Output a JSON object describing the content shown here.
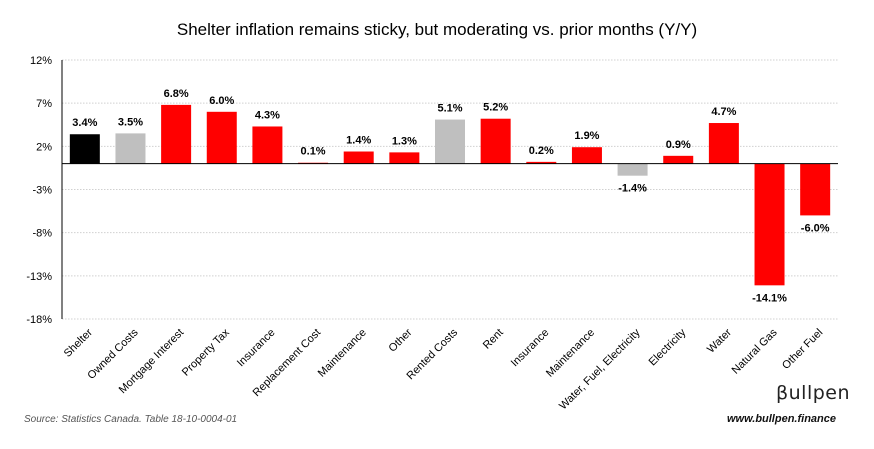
{
  "chart_data": {
    "type": "bar",
    "title": "Shelter inflation remains sticky, but moderating vs. prior months (Y/Y)",
    "categories": [
      "Shelter",
      "Owned Costs",
      "Mortgage Interest",
      "Property Tax",
      "Insurance",
      "Replacement Cost",
      "Maintenance",
      "Other",
      "Rented Costs",
      "Rent",
      "Insurance",
      "Maintenance",
      "Water, Fuel, Electricity",
      "Electricity",
      "Water",
      "Natural Gas",
      "Other Fuel"
    ],
    "values": [
      3.4,
      3.5,
      6.8,
      6.0,
      4.3,
      0.1,
      1.4,
      1.3,
      5.1,
      5.2,
      0.2,
      1.9,
      -1.4,
      0.9,
      4.7,
      -14.1,
      -6.0
    ],
    "data_labels": [
      "3.4%",
      "3.5%",
      "6.8%",
      "6.0%",
      "4.3%",
      "0.1%",
      "1.4%",
      "1.3%",
      "5.1%",
      "5.2%",
      "0.2%",
      "1.9%",
      "-1.4%",
      "0.9%",
      "4.7%",
      "-14.1%",
      "-6.0%"
    ],
    "bar_colors": [
      "#000000",
      "#bfbfbf",
      "#ff0000",
      "#ff0000",
      "#ff0000",
      "#ff0000",
      "#ff0000",
      "#ff0000",
      "#bfbfbf",
      "#ff0000",
      "#ff0000",
      "#ff0000",
      "#bfbfbf",
      "#ff0000",
      "#ff0000",
      "#ff0000",
      "#ff0000"
    ],
    "yticks": [
      12,
      7,
      2,
      -3,
      -8,
      -13,
      -18
    ],
    "ytick_labels": [
      "12%",
      "7%",
      "2%",
      "-3%",
      "-8%",
      "-13%",
      "-18%"
    ],
    "ylim": [
      -18,
      12
    ],
    "grid": true,
    "xlabel": "",
    "ylabel": ""
  },
  "footer": {
    "source": "Source: Statistics Canada. Table 18-10-0004-01",
    "brand": "βullpen",
    "url": "www.bullpen.finance"
  }
}
